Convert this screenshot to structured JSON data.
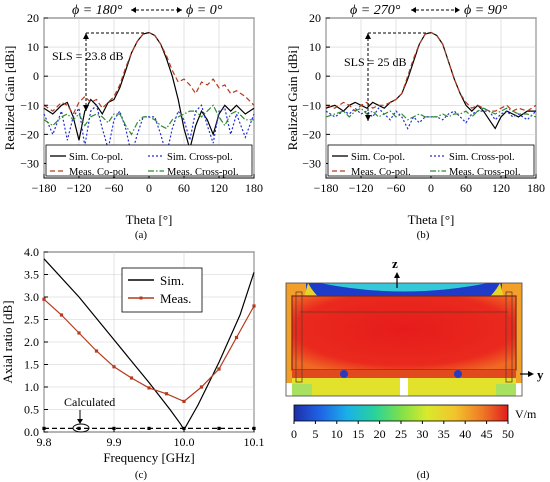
{
  "colors": {
    "sim_co": "#000000",
    "sim_cross": "#1f2fd6",
    "meas_co": "#b53a1e",
    "meas_cross": "#2e8b2e",
    "meas_ar": "#b53a1e"
  },
  "chart_data": [
    {
      "id": "a",
      "type": "line",
      "caption": "(a)",
      "ylabel": "Realized Gain [dBi]",
      "xlabel": "Theta [°]",
      "xlim": [
        -180,
        180
      ],
      "ylim": [
        -35,
        20
      ],
      "xticks": [
        "−180",
        "−120",
        "−60",
        "0",
        "60",
        "120",
        "180"
      ],
      "yticks": [
        "20",
        "10",
        "0",
        "−10",
        "−20",
        "−30"
      ],
      "phi_left": "ϕ = 180°",
      "phi_right": "ϕ = 0°",
      "sls_label": "SLS = 23.8 dB",
      "legend": [
        "Sim. Co-pol.",
        "Sim. Cross-pol.",
        "Meas. Co-pol.",
        "Meas. Cross-pol."
      ],
      "series": [
        {
          "name": "Sim. Co-pol.",
          "style": "solid",
          "x": [
            -180,
            -165,
            -150,
            -140,
            -130,
            -120,
            -110,
            -100,
            -90,
            -80,
            -70,
            -60,
            -50,
            -40,
            -30,
            -20,
            -10,
            0,
            10,
            20,
            30,
            40,
            50,
            60,
            70,
            80,
            90,
            100,
            110,
            120,
            130,
            140,
            150,
            165,
            180
          ],
          "y": [
            -11,
            -13,
            -10,
            -9,
            -14,
            -22,
            -12,
            -8,
            -10,
            -13,
            -9,
            -8,
            -4,
            2,
            8,
            12,
            14.5,
            15,
            14,
            11,
            6,
            0,
            -8,
            -18,
            -25,
            -17,
            -12,
            -15,
            -20,
            -13,
            -10,
            -12,
            -10,
            -13,
            -11
          ]
        },
        {
          "name": "Sim. Cross-pol.",
          "style": "dotted",
          "x": [
            -180,
            -165,
            -150,
            -140,
            -130,
            -120,
            -110,
            -100,
            -90,
            -80,
            -70,
            -60,
            -50,
            -40,
            -30,
            -20,
            -10,
            0,
            10,
            20,
            30,
            40,
            50,
            60,
            70,
            80,
            90,
            100,
            110,
            120,
            130,
            140,
            150,
            165,
            180
          ],
          "y": [
            -13,
            -20,
            -12,
            -22,
            -14,
            -11,
            -24,
            -12,
            -10,
            -18,
            -25,
            -15,
            -12,
            -18,
            -27,
            -20,
            -14,
            -14,
            -14,
            -20,
            -27,
            -18,
            -12,
            -15,
            -22,
            -12,
            -10,
            -17,
            -23,
            -12,
            -11,
            -20,
            -13,
            -21,
            -13
          ]
        },
        {
          "name": "Meas. Co-pol.",
          "style": "dashed",
          "x": [
            -180,
            -165,
            -150,
            -140,
            -130,
            -120,
            -110,
            -100,
            -90,
            -80,
            -70,
            -60,
            -50,
            -40,
            -30,
            -20,
            -10,
            0,
            10,
            20,
            30,
            40,
            50,
            60,
            70,
            80,
            90,
            100,
            110,
            120,
            130,
            140,
            150,
            165,
            180
          ],
          "y": [
            -10,
            -12,
            -9,
            -10,
            -13,
            -9,
            -7,
            -9,
            -8,
            -11,
            -9,
            -7,
            -3,
            3,
            8,
            12,
            14.5,
            15,
            14,
            11,
            7,
            2,
            -2,
            -1,
            -3,
            -6,
            -2,
            -3,
            -1,
            -4,
            -3,
            -6,
            -5,
            -7,
            -10
          ]
        },
        {
          "name": "Meas. Cross-pol.",
          "style": "dashdot",
          "x": [
            -180,
            -165,
            -150,
            -140,
            -130,
            -120,
            -110,
            -100,
            -90,
            -80,
            -70,
            -60,
            -50,
            -40,
            -30,
            -20,
            -10,
            0,
            10,
            20,
            30,
            40,
            50,
            60,
            70,
            80,
            90,
            100,
            110,
            120,
            130,
            140,
            150,
            165,
            180
          ],
          "y": [
            -15,
            -17,
            -14,
            -13,
            -15,
            -13,
            -17,
            -14,
            -13,
            -14,
            -16,
            -13,
            -13,
            -17,
            -20,
            -16,
            -14,
            -14,
            -15,
            -17,
            -18,
            -15,
            -14,
            -13,
            -12,
            -12,
            -14,
            -12,
            -10,
            -14,
            -17,
            -13,
            -12,
            -15,
            -15
          ]
        }
      ]
    },
    {
      "id": "b",
      "type": "line",
      "caption": "(b)",
      "ylabel": "Realized Gain [dBi]",
      "xlabel": "Theta [°]",
      "xlim": [
        -180,
        180
      ],
      "ylim": [
        -35,
        20
      ],
      "xticks": [
        "−180",
        "−120",
        "−60",
        "0",
        "60",
        "120",
        "180"
      ],
      "yticks": [
        "20",
        "10",
        "0",
        "−10",
        "−20",
        "−30"
      ],
      "phi_left": "ϕ = 270°",
      "phi_right": "ϕ = 90°",
      "sls_label": "SLS = 25 dB",
      "legend": [
        "Sim. Co-pol.",
        "Sim. Cross-pol.",
        "Meas. Co-pol.",
        "Meas. Cross-pol."
      ],
      "series": [
        {
          "name": "Sim. Co-pol.",
          "style": "solid",
          "x": [
            -180,
            -165,
            -150,
            -140,
            -130,
            -120,
            -110,
            -100,
            -90,
            -80,
            -70,
            -60,
            -50,
            -40,
            -30,
            -20,
            -10,
            0,
            10,
            20,
            30,
            40,
            50,
            60,
            70,
            80,
            90,
            100,
            110,
            120,
            130,
            140,
            150,
            165,
            180
          ],
          "y": [
            -11,
            -10,
            -12,
            -10,
            -9,
            -10,
            -11,
            -9,
            -10,
            -11,
            -9,
            -8,
            -6,
            -1,
            5,
            11,
            14.5,
            15,
            14,
            11,
            5,
            -1,
            -6,
            -10,
            -12,
            -10,
            -12,
            -15,
            -18,
            -14,
            -12,
            -13,
            -14,
            -12,
            -12
          ]
        },
        {
          "name": "Sim. Cross-pol.",
          "style": "dotted",
          "x": [
            -180,
            -165,
            -150,
            -140,
            -130,
            -120,
            -110,
            -100,
            -90,
            -80,
            -70,
            -60,
            -50,
            -40,
            -30,
            -20,
            -10,
            0,
            10,
            20,
            30,
            40,
            50,
            60,
            70,
            80,
            90,
            100,
            110,
            120,
            130,
            140,
            150,
            165,
            180
          ],
          "y": [
            -12,
            -14,
            -12,
            -13,
            -11,
            -13,
            -12,
            -14,
            -11,
            -13,
            -15,
            -12,
            -14,
            -18,
            -14,
            -16,
            -14,
            -14,
            -14,
            -15,
            -13,
            -12,
            -14,
            -16,
            -13,
            -12,
            -12,
            -12,
            -15,
            -13,
            -12,
            -14,
            -13,
            -15,
            -12
          ]
        },
        {
          "name": "Meas. Co-pol.",
          "style": "dashed",
          "x": [
            -180,
            -165,
            -150,
            -140,
            -130,
            -120,
            -110,
            -100,
            -90,
            -80,
            -70,
            -60,
            -50,
            -40,
            -30,
            -20,
            -10,
            0,
            10,
            20,
            30,
            40,
            50,
            60,
            70,
            80,
            90,
            100,
            110,
            120,
            130,
            140,
            150,
            165,
            180
          ],
          "y": [
            -10,
            -11,
            -9,
            -10,
            -12,
            -10,
            -9,
            -11,
            -10,
            -10,
            -9,
            -8,
            -6,
            0,
            6,
            11,
            14.5,
            15,
            14,
            11,
            5,
            -1,
            -6,
            -9,
            -11,
            -10,
            -11,
            -12,
            -12,
            -11,
            -10,
            -12,
            -11,
            -12,
            -10
          ]
        },
        {
          "name": "Meas. Cross-pol.",
          "style": "dashdot",
          "x": [
            -180,
            -165,
            -150,
            -140,
            -130,
            -120,
            -110,
            -100,
            -90,
            -80,
            -70,
            -60,
            -50,
            -40,
            -30,
            -20,
            -10,
            0,
            10,
            20,
            30,
            40,
            50,
            60,
            70,
            80,
            90,
            100,
            110,
            120,
            130,
            140,
            150,
            165,
            180
          ],
          "y": [
            -14,
            -13,
            -12,
            -14,
            -12,
            -11,
            -13,
            -12,
            -14,
            -13,
            -12,
            -14,
            -13,
            -15,
            -14,
            -13,
            -14,
            -14,
            -14,
            -13,
            -14,
            -13,
            -13,
            -12,
            -14,
            -12,
            -11,
            -12,
            -13,
            -12,
            -11,
            -12,
            -13,
            -13,
            -14
          ]
        }
      ]
    },
    {
      "id": "c",
      "type": "line",
      "caption": "(c)",
      "ylabel": "Axial ratio [dB]",
      "xlabel": "Frequency [GHz]",
      "xlim": [
        9.8,
        10.1
      ],
      "ylim": [
        0,
        4
      ],
      "xticks": [
        "9.8",
        "9.9",
        "10.0",
        "10.1"
      ],
      "yticks": [
        "0.0",
        "0.5",
        "1.0",
        "1.5",
        "2.0",
        "2.5",
        "3.0",
        "3.5",
        "4.0"
      ],
      "calc_label": "Calculated",
      "legend": [
        "Sim.",
        "Meas."
      ],
      "series": [
        {
          "name": "Sim.",
          "style": "solid",
          "x": [
            9.8,
            9.85,
            9.9,
            9.95,
            9.98,
            9.995,
            10.0,
            10.02,
            10.05,
            10.08,
            10.1
          ],
          "y": [
            3.85,
            3.0,
            2.05,
            1.1,
            0.5,
            0.18,
            0.05,
            0.6,
            1.55,
            2.6,
            3.55
          ]
        },
        {
          "name": "Meas.",
          "style": "solid-marker",
          "x": [
            9.8,
            9.825,
            9.85,
            9.875,
            9.9,
            9.925,
            9.95,
            9.975,
            10.0,
            10.025,
            10.05,
            10.075,
            10.1
          ],
          "y": [
            2.95,
            2.6,
            2.2,
            1.8,
            1.45,
            1.2,
            0.98,
            0.85,
            0.68,
            1.0,
            1.4,
            2.1,
            2.8
          ]
        },
        {
          "name": "Calculated",
          "style": "dashed-marker",
          "x": [
            9.8,
            9.85,
            9.9,
            9.95,
            10.0,
            10.05,
            10.1
          ],
          "y": [
            0.08,
            0.08,
            0.08,
            0.08,
            0.08,
            0.08,
            0.08
          ]
        }
      ]
    }
  ],
  "field_plot": {
    "caption": "(d)",
    "axis_z": "z",
    "axis_y": "y",
    "unit": "V/m",
    "colorbar_ticks": [
      "0",
      "5",
      "10",
      "15",
      "20",
      "25",
      "30",
      "35",
      "40",
      "45",
      "50"
    ]
  }
}
